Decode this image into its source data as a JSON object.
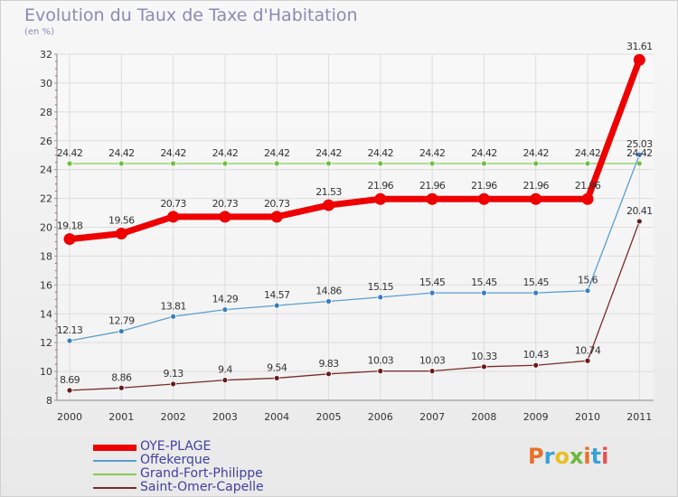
{
  "title": "Evolution du Taux de Taxe d'Habitation",
  "subtitle": "(en %)",
  "logo": {
    "text": "Proxiti",
    "colors": [
      "#e8702a",
      "#3aa0d8",
      "#e8c020",
      "#6cb83c",
      "#e8702a",
      "#3aa0d8",
      "#e85050"
    ]
  },
  "chart_data": {
    "type": "line",
    "title": "Evolution du Taux de Taxe d'Habitation",
    "ylabel": "(en %)",
    "xlabel": "",
    "x": [
      "2000",
      "2001",
      "2002",
      "2003",
      "2004",
      "2005",
      "2006",
      "2007",
      "2008",
      "2009",
      "2010",
      "2011"
    ],
    "ylim": [
      8,
      32
    ],
    "yticks": [
      8,
      10,
      12,
      14,
      16,
      18,
      20,
      22,
      24,
      26,
      28,
      30,
      32
    ],
    "grid": true,
    "legend_position": "bottom-left",
    "series": [
      {
        "name": "OYE-PLAGE",
        "color": "#ee0000",
        "values": [
          19.18,
          19.56,
          20.73,
          20.73,
          20.73,
          21.53,
          21.96,
          21.96,
          21.96,
          21.96,
          21.96,
          31.61
        ],
        "labels": [
          "19.18",
          "19.56",
          "20.73",
          "20.73",
          "20.73",
          "21.53",
          "21.96",
          "21.96",
          "21.96",
          "21.96",
          "21.96",
          "31.61"
        ]
      },
      {
        "name": "Offekerque",
        "color": "#5a9ed0",
        "values": [
          12.13,
          12.79,
          13.81,
          14.29,
          14.57,
          14.86,
          15.15,
          15.45,
          15.45,
          15.45,
          15.6,
          25.03
        ],
        "labels": [
          "12.13",
          "12.79",
          "13.81",
          "14.29",
          "14.57",
          "14.86",
          "15.15",
          "15.45",
          "15.45",
          "15.45",
          "15.6",
          "25.03"
        ]
      },
      {
        "name": "Grand-Fort-Philippe",
        "color": "#88cc55",
        "values": [
          24.42,
          24.42,
          24.42,
          24.42,
          24.42,
          24.42,
          24.42,
          24.42,
          24.42,
          24.42,
          24.42,
          24.42
        ],
        "labels": [
          "24.42",
          "24.42",
          "24.42",
          "24.42",
          "24.42",
          "24.42",
          "24.42",
          "24.42",
          "24.42",
          "24.42",
          "24.42",
          "24.42"
        ]
      },
      {
        "name": "Saint-Omer-Capelle",
        "color": "#7a2a2a",
        "values": [
          8.69,
          8.86,
          9.13,
          9.4,
          9.54,
          9.83,
          10.03,
          10.03,
          10.33,
          10.43,
          10.74,
          20.41
        ],
        "labels": [
          "8.69",
          "8.86",
          "9.13",
          "9.4",
          "9.54",
          "9.83",
          "10.03",
          "10.03",
          "10.33",
          "10.43",
          "10.74",
          "20.41"
        ]
      }
    ]
  }
}
